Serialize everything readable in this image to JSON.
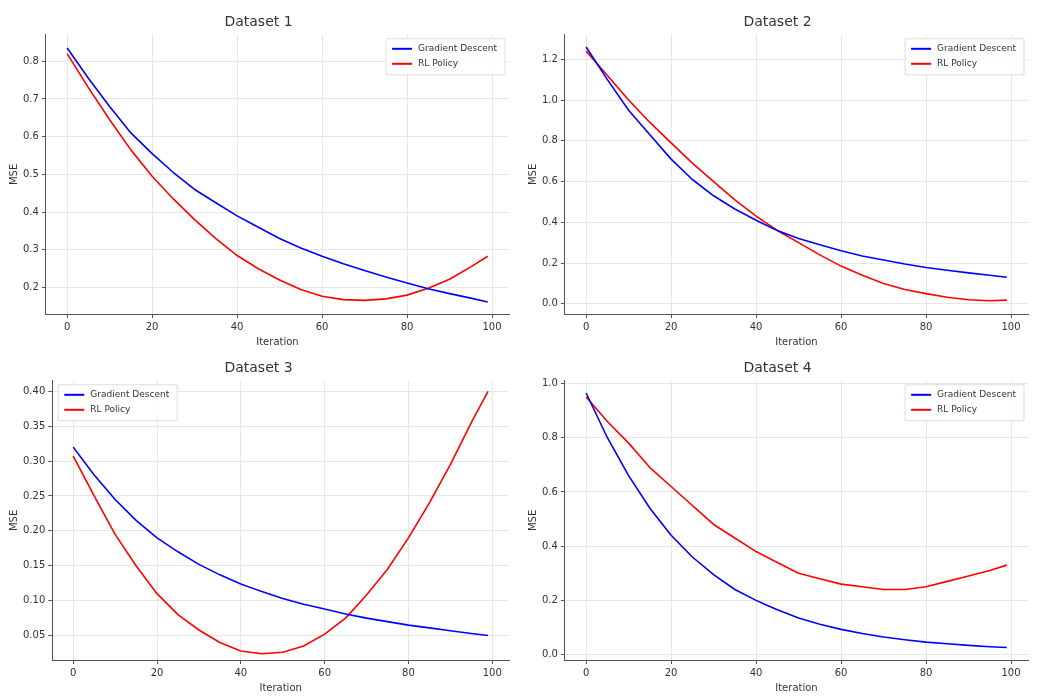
{
  "chart_data": [
    {
      "type": "line",
      "title": "Dataset 1",
      "xlabel": "Iteration",
      "ylabel": "MSE",
      "x": [
        0,
        5,
        10,
        15,
        20,
        25,
        30,
        35,
        40,
        45,
        50,
        55,
        60,
        65,
        70,
        75,
        80,
        85,
        90,
        95,
        99
      ],
      "xlim": [
        -5,
        104
      ],
      "xticks": [
        0,
        20,
        40,
        60,
        80,
        100
      ],
      "ylim": [
        0.13,
        0.87
      ],
      "yticks": [
        0.2,
        0.3,
        0.4,
        0.5,
        0.6,
        0.7,
        0.8
      ],
      "grid": true,
      "legend": "top right",
      "marker": "none",
      "line_style": "solid",
      "series": [
        {
          "name": "Gradient Descent",
          "color": "#0000ff",
          "values": [
            0.835,
            0.755,
            0.68,
            0.61,
            0.555,
            0.505,
            0.46,
            0.425,
            0.39,
            0.36,
            0.33,
            0.305,
            0.283,
            0.263,
            0.245,
            0.228,
            0.212,
            0.197,
            0.184,
            0.172,
            0.162
          ]
        },
        {
          "name": "RL Policy",
          "color": "#ff0000",
          "values": [
            0.82,
            0.73,
            0.645,
            0.565,
            0.495,
            0.435,
            0.38,
            0.33,
            0.285,
            0.25,
            0.22,
            0.195,
            0.177,
            0.168,
            0.166,
            0.17,
            0.18,
            0.198,
            0.222,
            0.255,
            0.283
          ]
        }
      ]
    },
    {
      "type": "line",
      "title": "Dataset 2",
      "xlabel": "Iteration",
      "ylabel": "MSE",
      "x": [
        0,
        5,
        10,
        15,
        20,
        25,
        30,
        35,
        40,
        45,
        50,
        55,
        60,
        65,
        70,
        75,
        80,
        85,
        90,
        95,
        99
      ],
      "xlim": [
        -5,
        104
      ],
      "xticks": [
        0,
        20,
        40,
        60,
        80,
        100
      ],
      "ylim": [
        -0.05,
        1.32
      ],
      "yticks": [
        {
          "value": 0,
          "label": "0.0"
        },
        0.2,
        0.4,
        0.6,
        0.8,
        {
          "value": 1,
          "label": "1.0"
        },
        1.2
      ],
      "grid": true,
      "legend": "top right",
      "marker": "none",
      "line_style": "solid",
      "series": [
        {
          "name": "Gradient Descent",
          "color": "#0000ff",
          "values": [
            1.26,
            1.1,
            0.95,
            0.83,
            0.71,
            0.61,
            0.53,
            0.465,
            0.41,
            0.36,
            0.32,
            0.29,
            0.26,
            0.235,
            0.215,
            0.195,
            0.178,
            0.165,
            0.152,
            0.14,
            0.13
          ]
        },
        {
          "name": "RL Policy",
          "color": "#ff0000",
          "values": [
            1.24,
            1.12,
            1.0,
            0.89,
            0.79,
            0.69,
            0.6,
            0.51,
            0.43,
            0.36,
            0.3,
            0.24,
            0.185,
            0.14,
            0.1,
            0.07,
            0.05,
            0.032,
            0.02,
            0.015,
            0.018
          ]
        }
      ]
    },
    {
      "type": "line",
      "title": "Dataset 3",
      "xlabel": "Iteration",
      "ylabel": "MSE",
      "x": [
        0,
        5,
        10,
        15,
        20,
        25,
        30,
        35,
        40,
        45,
        50,
        55,
        60,
        65,
        70,
        75,
        80,
        85,
        90,
        95,
        99
      ],
      "xlim": [
        -5,
        104
      ],
      "xticks": [
        0,
        20,
        40,
        60,
        80,
        100
      ],
      "ylim": [
        0.015,
        0.415
      ],
      "yticks": [
        {
          "value": 0.05,
          "label": "0.05"
        },
        {
          "value": 0.1,
          "label": "0.10"
        },
        {
          "value": 0.15,
          "label": "0.15"
        },
        {
          "value": 0.2,
          "label": "0.20"
        },
        {
          "value": 0.25,
          "label": "0.25"
        },
        {
          "value": 0.3,
          "label": "0.30"
        },
        {
          "value": 0.35,
          "label": "0.35"
        },
        {
          "value": 0.4,
          "label": "0.40"
        }
      ],
      "grid": true,
      "legend": "top left",
      "marker": "none",
      "line_style": "solid",
      "series": [
        {
          "name": "Gradient Descent",
          "color": "#0000ff",
          "values": [
            0.32,
            0.28,
            0.245,
            0.215,
            0.19,
            0.17,
            0.152,
            0.137,
            0.124,
            0.113,
            0.103,
            0.095,
            0.088,
            0.081,
            0.075,
            0.07,
            0.065,
            0.061,
            0.057,
            0.053,
            0.05
          ]
        },
        {
          "name": "RL Policy",
          "color": "#ff0000",
          "values": [
            0.307,
            0.25,
            0.195,
            0.15,
            0.11,
            0.08,
            0.058,
            0.04,
            0.028,
            0.024,
            0.026,
            0.035,
            0.052,
            0.075,
            0.108,
            0.145,
            0.19,
            0.24,
            0.295,
            0.355,
            0.4
          ]
        }
      ]
    },
    {
      "type": "line",
      "title": "Dataset 4",
      "xlabel": "Iteration",
      "ylabel": "MSE",
      "x": [
        0,
        5,
        10,
        15,
        20,
        25,
        30,
        35,
        40,
        45,
        50,
        55,
        60,
        65,
        70,
        75,
        80,
        85,
        90,
        95,
        99
      ],
      "xlim": [
        -5,
        104
      ],
      "xticks": [
        0,
        20,
        40,
        60,
        80,
        100
      ],
      "ylim": [
        -0.02,
        1.01
      ],
      "yticks": [
        {
          "value": 0,
          "label": "0.0"
        },
        0.2,
        0.4,
        0.6,
        0.8,
        {
          "value": 1,
          "label": "1.0"
        }
      ],
      "grid": true,
      "legend": "top right",
      "marker": "none",
      "line_style": "solid",
      "series": [
        {
          "name": "Gradient Descent",
          "color": "#0000ff",
          "values": [
            0.965,
            0.8,
            0.66,
            0.54,
            0.44,
            0.36,
            0.295,
            0.24,
            0.2,
            0.165,
            0.135,
            0.112,
            0.093,
            0.078,
            0.065,
            0.055,
            0.046,
            0.04,
            0.034,
            0.029,
            0.026
          ]
        },
        {
          "name": "RL Policy",
          "color": "#ff0000",
          "values": [
            0.95,
            0.86,
            0.78,
            0.69,
            0.62,
            0.55,
            0.48,
            0.43,
            0.38,
            0.34,
            0.3,
            0.28,
            0.26,
            0.25,
            0.24,
            0.24,
            0.25,
            0.27,
            0.29,
            0.31,
            0.33
          ]
        }
      ]
    }
  ]
}
